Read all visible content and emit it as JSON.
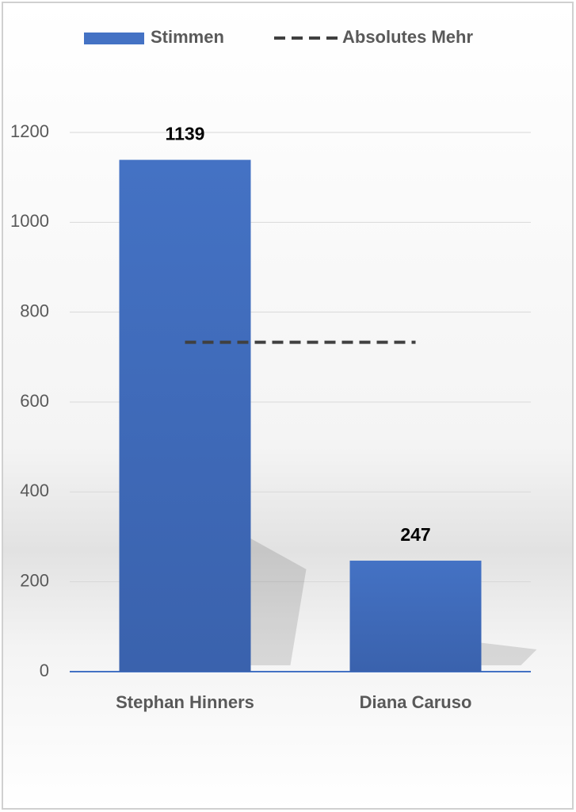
{
  "chart_data": {
    "type": "bar",
    "categories": [
      "Stephan Hinners",
      "Diana Caruso"
    ],
    "series": [
      {
        "name": "Stimmen",
        "color": "#4472c4",
        "values": [
          1139,
          247
        ]
      },
      {
        "name": "Absolutes Mehr",
        "type": "line",
        "dashed": true,
        "color": "#404040",
        "values": [
          733,
          733
        ]
      }
    ],
    "ylim": [
      0,
      1200
    ],
    "yticks": [
      0,
      200,
      400,
      600,
      800,
      1000,
      1200
    ],
    "grid": true,
    "legend": "top",
    "data_labels": true
  }
}
